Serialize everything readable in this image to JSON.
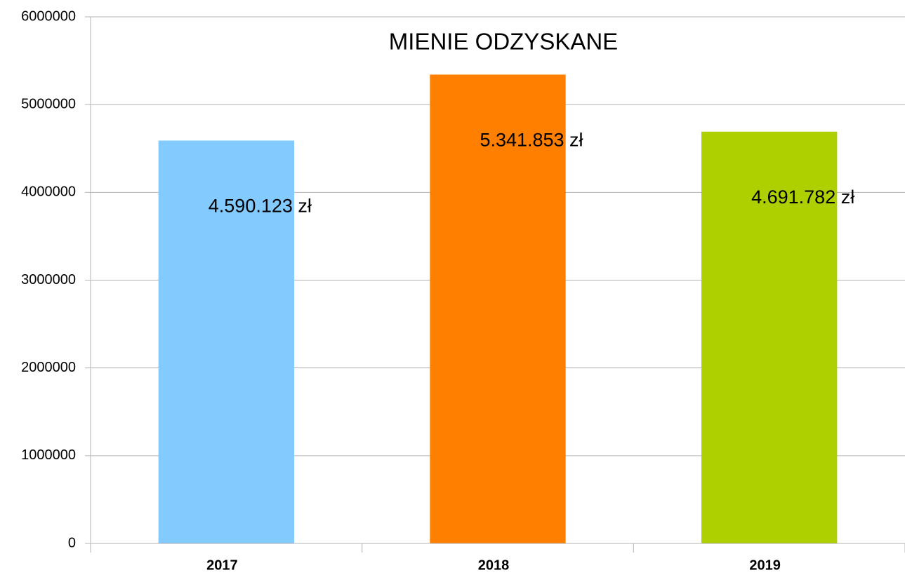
{
  "chart_data": {
    "type": "bar",
    "title": "MIENIE ODZYSKANE",
    "categories": [
      "2017",
      "2018",
      "2019"
    ],
    "values": [
      4590123,
      5341853,
      4691782
    ],
    "value_labels": [
      "4.590.123 zł",
      "5.341.853 zł",
      "4.691.782 zł"
    ],
    "colors": [
      "#83caff",
      "#ff8000",
      "#aecf00"
    ],
    "ylim": [
      0,
      6000000
    ],
    "yticks": [
      0,
      1000000,
      2000000,
      3000000,
      4000000,
      5000000,
      6000000
    ],
    "grid": true
  }
}
